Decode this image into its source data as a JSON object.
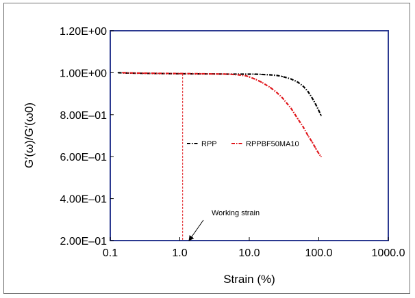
{
  "chart_data": {
    "type": "scatter",
    "xlabel": "Strain (%)",
    "ylabel": "G′(ω)/G′(ω0)",
    "x_scale": "log",
    "xlim": [
      0.1,
      1000
    ],
    "ylim": [
      0.2,
      1.2
    ],
    "x_ticks": [
      {
        "value": 0.1,
        "label": "0.1"
      },
      {
        "value": 1,
        "label": "1.0"
      },
      {
        "value": 10,
        "label": "10.0"
      },
      {
        "value": 100,
        "label": "100.0"
      },
      {
        "value": 1000,
        "label": "1000.0"
      }
    ],
    "y_ticks": [
      {
        "value": 0.2,
        "label": "2.00E–01"
      },
      {
        "value": 0.4,
        "label": "4.00E–01"
      },
      {
        "value": 0.6,
        "label": "6.00E–01"
      },
      {
        "value": 0.8,
        "label": "8.00E–01"
      },
      {
        "value": 1.0,
        "label": "1.00E+00"
      },
      {
        "value": 1.2,
        "label": "1.20E+00"
      }
    ],
    "grid": false,
    "legend_position": "center",
    "series": [
      {
        "name": "RPP",
        "color": "#000000",
        "style": "dash-dot",
        "x": [
          0.13,
          0.2,
          0.3,
          0.5,
          1,
          2,
          3,
          5,
          7,
          10,
          12,
          15,
          20,
          25,
          30,
          40,
          50,
          60,
          70,
          80,
          90,
          100,
          108
        ],
        "y": [
          1.0,
          0.998,
          0.997,
          0.996,
          0.995,
          0.994,
          0.994,
          0.993,
          0.993,
          0.993,
          0.993,
          0.992,
          0.99,
          0.987,
          0.982,
          0.97,
          0.955,
          0.935,
          0.91,
          0.88,
          0.85,
          0.82,
          0.795
        ]
      },
      {
        "name": "RPPBF50MA10",
        "color": "#e0161b",
        "style": "dash-dot",
        "x": [
          0.15,
          0.2,
          0.3,
          0.5,
          1,
          2,
          3,
          5,
          7,
          9,
          10,
          12,
          15,
          20,
          25,
          30,
          40,
          50,
          60,
          70,
          80,
          90,
          100,
          108
        ],
        "y": [
          1.0,
          0.999,
          0.998,
          0.997,
          0.996,
          0.995,
          0.994,
          0.993,
          0.99,
          0.985,
          0.98,
          0.97,
          0.955,
          0.93,
          0.905,
          0.88,
          0.83,
          0.78,
          0.74,
          0.7,
          0.67,
          0.64,
          0.615,
          0.6
        ]
      }
    ],
    "working_strain": {
      "x": 1.1,
      "y_top": 0.995,
      "y_bottom": 0.2,
      "color": "#e0161b"
    },
    "annotations": [
      {
        "text": "Working strain",
        "x": 1.1,
        "y": 0.2
      }
    ]
  }
}
